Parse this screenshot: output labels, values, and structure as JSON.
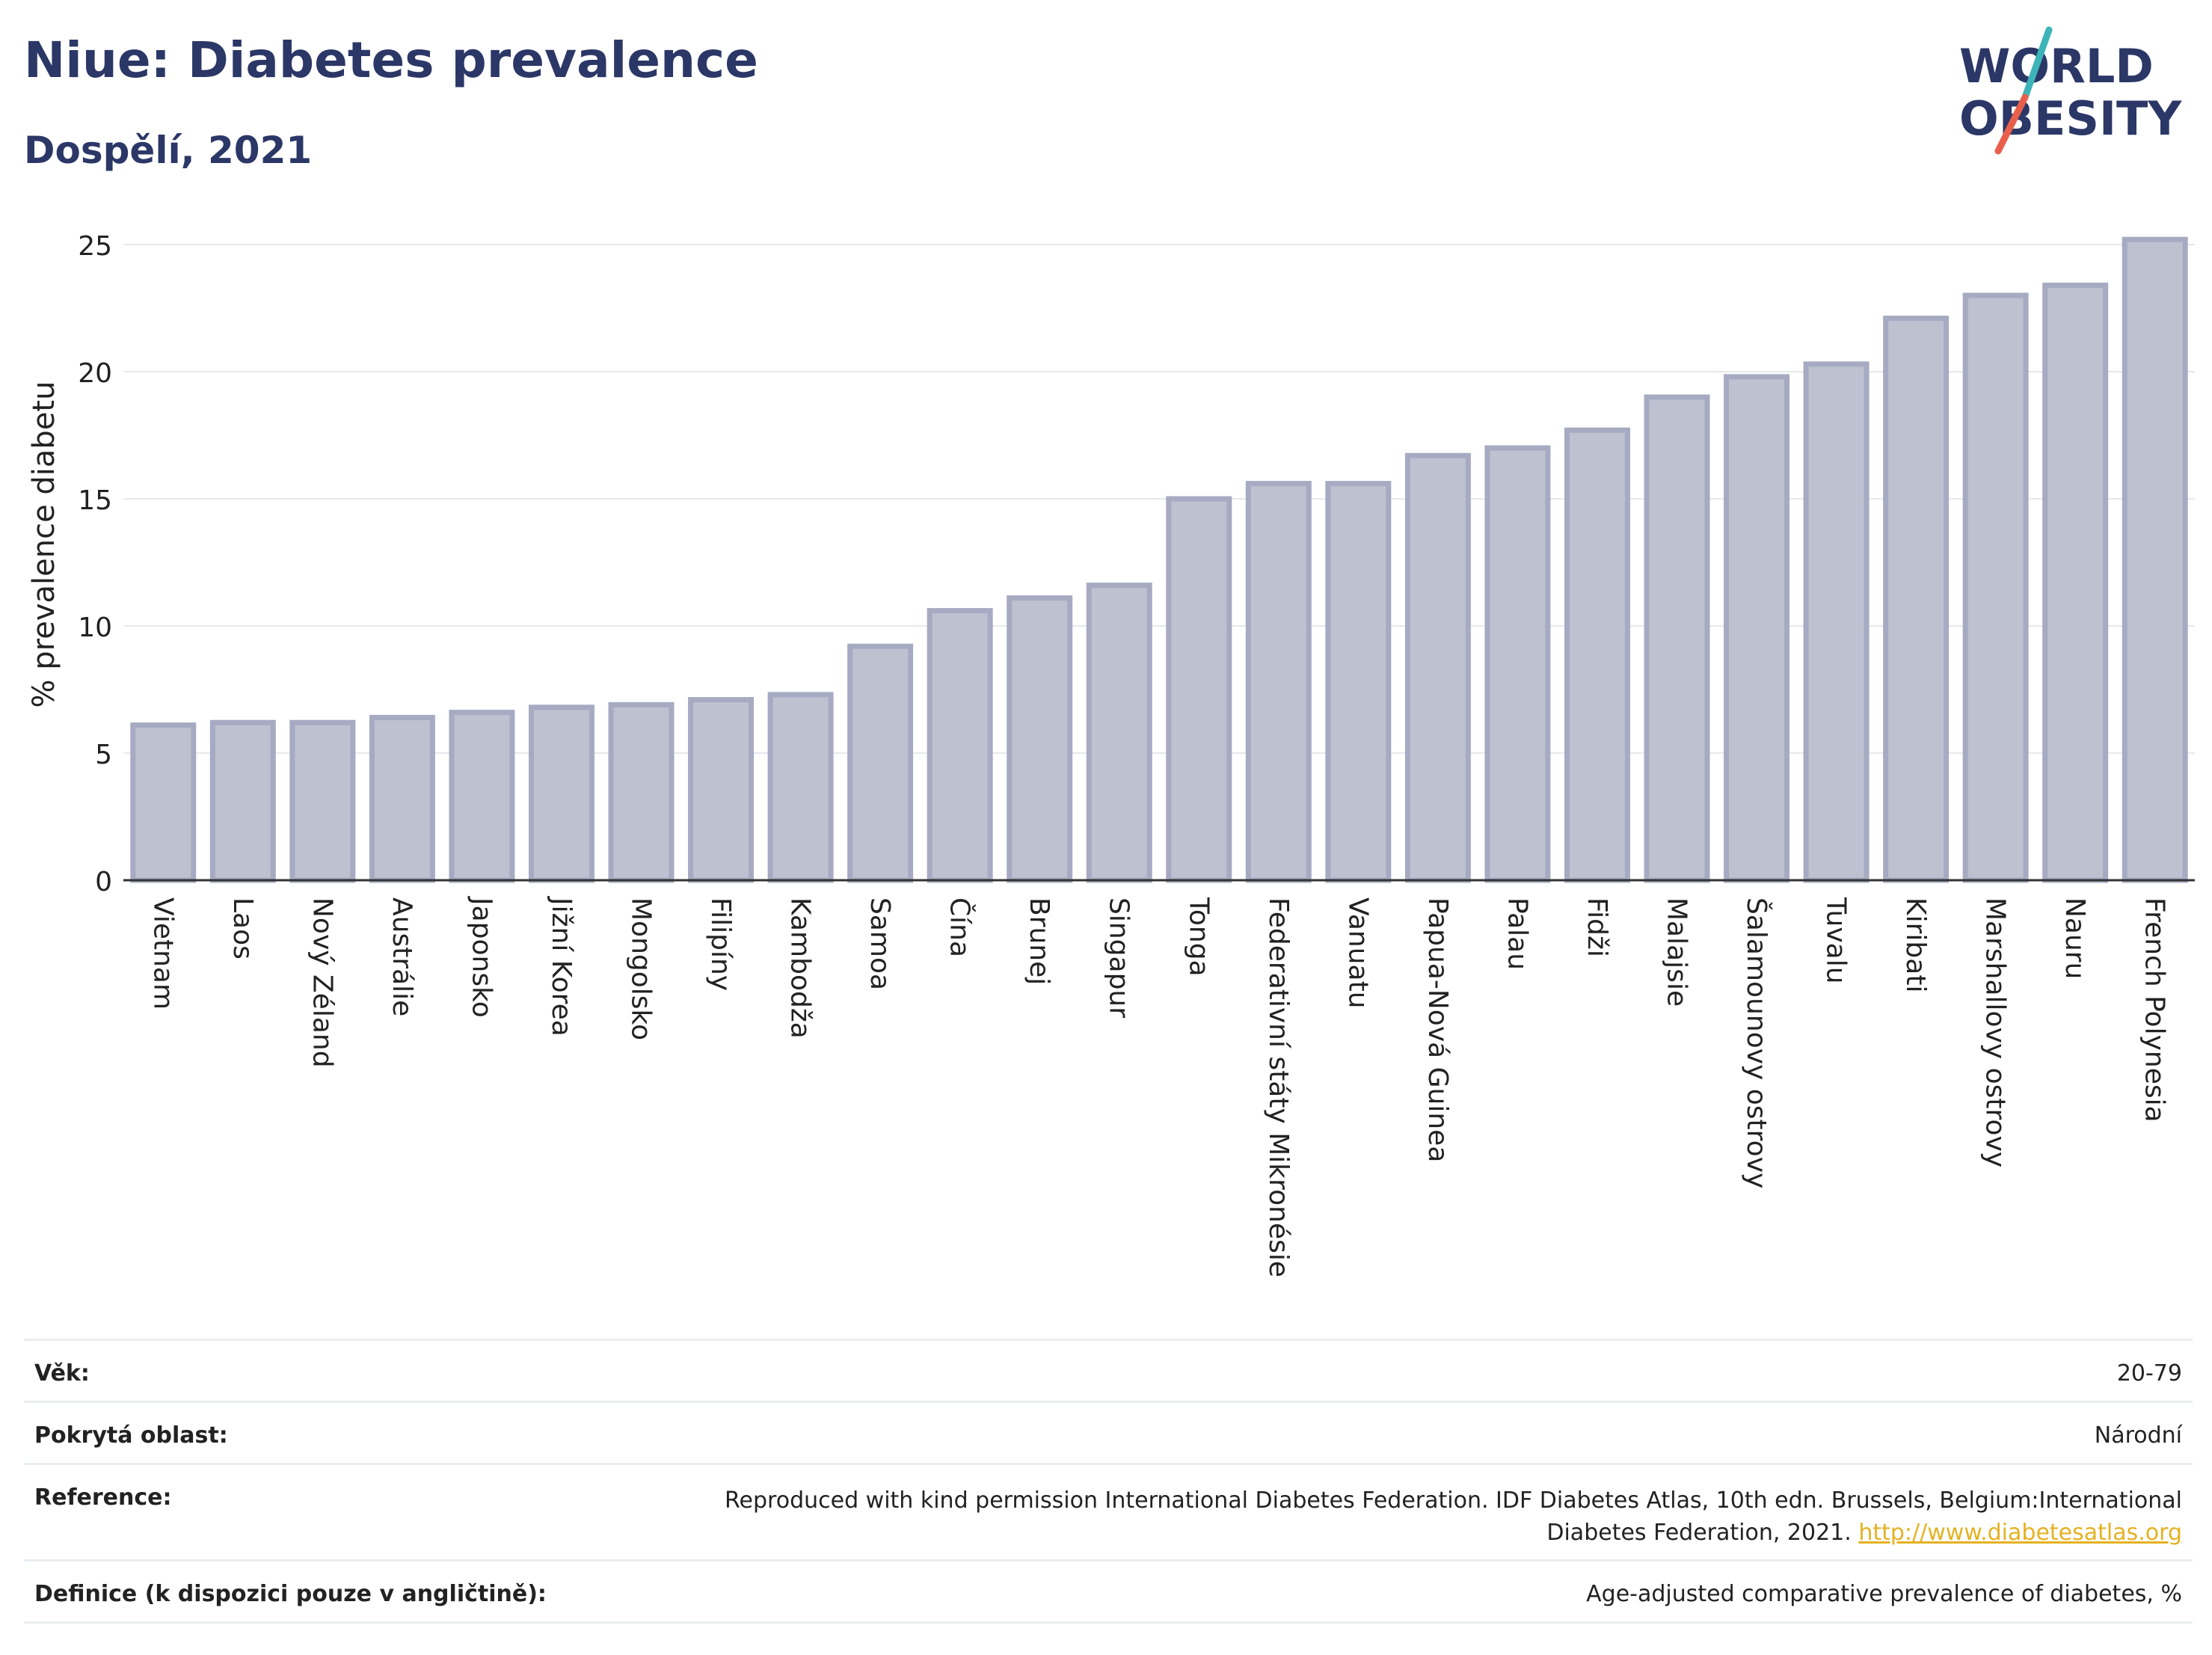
{
  "header": {
    "title": "Niue: Diabetes prevalence",
    "subtitle": "Dospělí, 2021"
  },
  "logo": {
    "line1": "WORLD",
    "line2": "OBESITY",
    "text_color": "#2b3766",
    "accent_teal": "#3db5b8",
    "accent_red": "#e8604c"
  },
  "chart_data": {
    "type": "bar",
    "title": "Niue: Diabetes prevalence",
    "subtitle": "Dospělí, 2021",
    "xlabel": "",
    "ylabel": "% prevalence diabetu",
    "ylim": [
      0,
      25
    ],
    "yticks": [
      0,
      5,
      10,
      15,
      20,
      25
    ],
    "grid": true,
    "bar_color": "#bec1d0",
    "bar_edge_color": "#a6aac2",
    "categories": [
      "Vietnam",
      "Laos",
      "Nový Zéland",
      "Austrálie",
      "Japonsko",
      "Jižní Korea",
      "Mongolsko",
      "Filipíny",
      "Kambodža",
      "Samoa",
      "Čína",
      "Brunej",
      "Singapur",
      "Tonga",
      "Federativní státy Mikronésie",
      "Vanuatu",
      "Papua-Nová Guinea",
      "Palau",
      "Fidži",
      "Malajsie",
      "Šalamounovy ostrovy",
      "Tuvalu",
      "Kiribati",
      "Marshallovy ostrovy",
      "Nauru",
      "French Polynesia"
    ],
    "values": [
      6.1,
      6.2,
      6.2,
      6.4,
      6.6,
      6.8,
      6.9,
      7.1,
      7.3,
      9.2,
      10.6,
      11.1,
      11.6,
      15.0,
      15.6,
      15.6,
      16.7,
      17.0,
      17.7,
      19.0,
      19.8,
      20.3,
      22.1,
      23.0,
      23.4,
      25.2
    ]
  },
  "info": [
    {
      "label": "Věk:",
      "value": "20-79"
    },
    {
      "label": "Pokrytá oblast:",
      "value": "Národní"
    },
    {
      "label": "Reference:",
      "value": "Reproduced with kind permission International Diabetes Federation.  IDF Diabetes Atlas, 10th edn. Brussels, Belgium:International Diabetes Federation, 2021.",
      "link": "http://www.diabetesatlas.org"
    },
    {
      "label": "Definice (k dispozici pouze v angličtině):",
      "value": "Age-adjusted comparative prevalence of diabetes, %"
    }
  ]
}
